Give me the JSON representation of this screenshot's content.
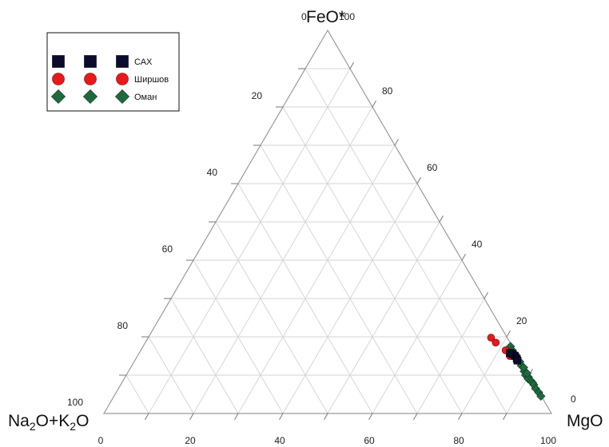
{
  "chart_data": {
    "type": "scatter",
    "subtype": "ternary",
    "axes": {
      "top": {
        "label_main": "FeO*",
        "label_sub": "",
        "label_tail": ""
      },
      "left": {
        "label_main": "Na",
        "label_sub": "2",
        "label_tail": "O+K",
        "label_sub2": "2",
        "label_tail2": "O"
      },
      "right": {
        "label_main": "MgO",
        "label_sub": "",
        "label_tail": ""
      }
    },
    "ticks": {
      "bottom": [
        "0",
        "20",
        "40",
        "60",
        "80",
        "100"
      ],
      "left": [
        "20",
        "40",
        "60",
        "80",
        "100"
      ],
      "right": [
        "20",
        "40",
        "60",
        "80",
        "100"
      ],
      "top_zero": "0",
      "top_hundred": "100",
      "right_zero": "0"
    },
    "grid": true,
    "grid_step": 10,
    "legend_position": "top-left",
    "series": [
      {
        "name": "САХ",
        "marker": "square",
        "color": "#0b0b2e",
        "points": [
          {
            "feo": 15.5,
            "alk": 1.0,
            "mgo": 83.5
          },
          {
            "feo": 15.0,
            "alk": 0.7,
            "mgo": 84.3
          },
          {
            "feo": 14.3,
            "alk": 0.6,
            "mgo": 85.1
          },
          {
            "feo": 13.8,
            "alk": 0.7,
            "mgo": 85.5
          },
          {
            "feo": 15.8,
            "alk": 1.4,
            "mgo": 82.8
          }
        ]
      },
      {
        "name": "Ширшов",
        "marker": "circle",
        "color": "#e8191c",
        "points": [
          {
            "feo": 19.8,
            "alk": 3.6,
            "mgo": 76.6
          },
          {
            "feo": 18.5,
            "alk": 3.2,
            "mgo": 78.3
          },
          {
            "feo": 16.5,
            "alk": 2.0,
            "mgo": 81.5
          },
          {
            "feo": 15.0,
            "alk": 1.8,
            "mgo": 83.2
          },
          {
            "feo": 15.8,
            "alk": 0.9,
            "mgo": 83.3
          }
        ]
      },
      {
        "name": "Оман",
        "marker": "diamond",
        "color": "#1f6a3d",
        "points": [
          {
            "feo": 17.5,
            "alk": 0.4,
            "mgo": 82.1
          },
          {
            "feo": 16.5,
            "alk": 0.5,
            "mgo": 83.0
          },
          {
            "feo": 15.5,
            "alk": 0.3,
            "mgo": 84.2
          },
          {
            "feo": 14.5,
            "alk": 0.4,
            "mgo": 85.1
          },
          {
            "feo": 13.5,
            "alk": 0.3,
            "mgo": 86.2
          },
          {
            "feo": 12.5,
            "alk": 0.5,
            "mgo": 87.0
          },
          {
            "feo": 11.0,
            "alk": 0.6,
            "mgo": 88.4
          },
          {
            "feo": 10.0,
            "alk": 0.8,
            "mgo": 89.2
          },
          {
            "feo": 9.5,
            "alk": 0.4,
            "mgo": 90.1
          },
          {
            "feo": 9.0,
            "alk": 0.7,
            "mgo": 90.3
          },
          {
            "feo": 8.5,
            "alk": 0.3,
            "mgo": 91.2
          },
          {
            "feo": 8.0,
            "alk": 0.2,
            "mgo": 91.8
          },
          {
            "feo": 7.5,
            "alk": 0.2,
            "mgo": 92.3
          },
          {
            "feo": 6.5,
            "alk": 0.3,
            "mgo": 93.2
          },
          {
            "feo": 5.5,
            "alk": 0.1,
            "mgo": 94.4
          },
          {
            "feo": 4.5,
            "alk": 0.1,
            "mgo": 95.4
          },
          {
            "feo": 10.5,
            "alk": 0.2,
            "mgo": 89.3
          },
          {
            "feo": 12.0,
            "alk": 0.2,
            "mgo": 87.8
          }
        ]
      }
    ]
  }
}
